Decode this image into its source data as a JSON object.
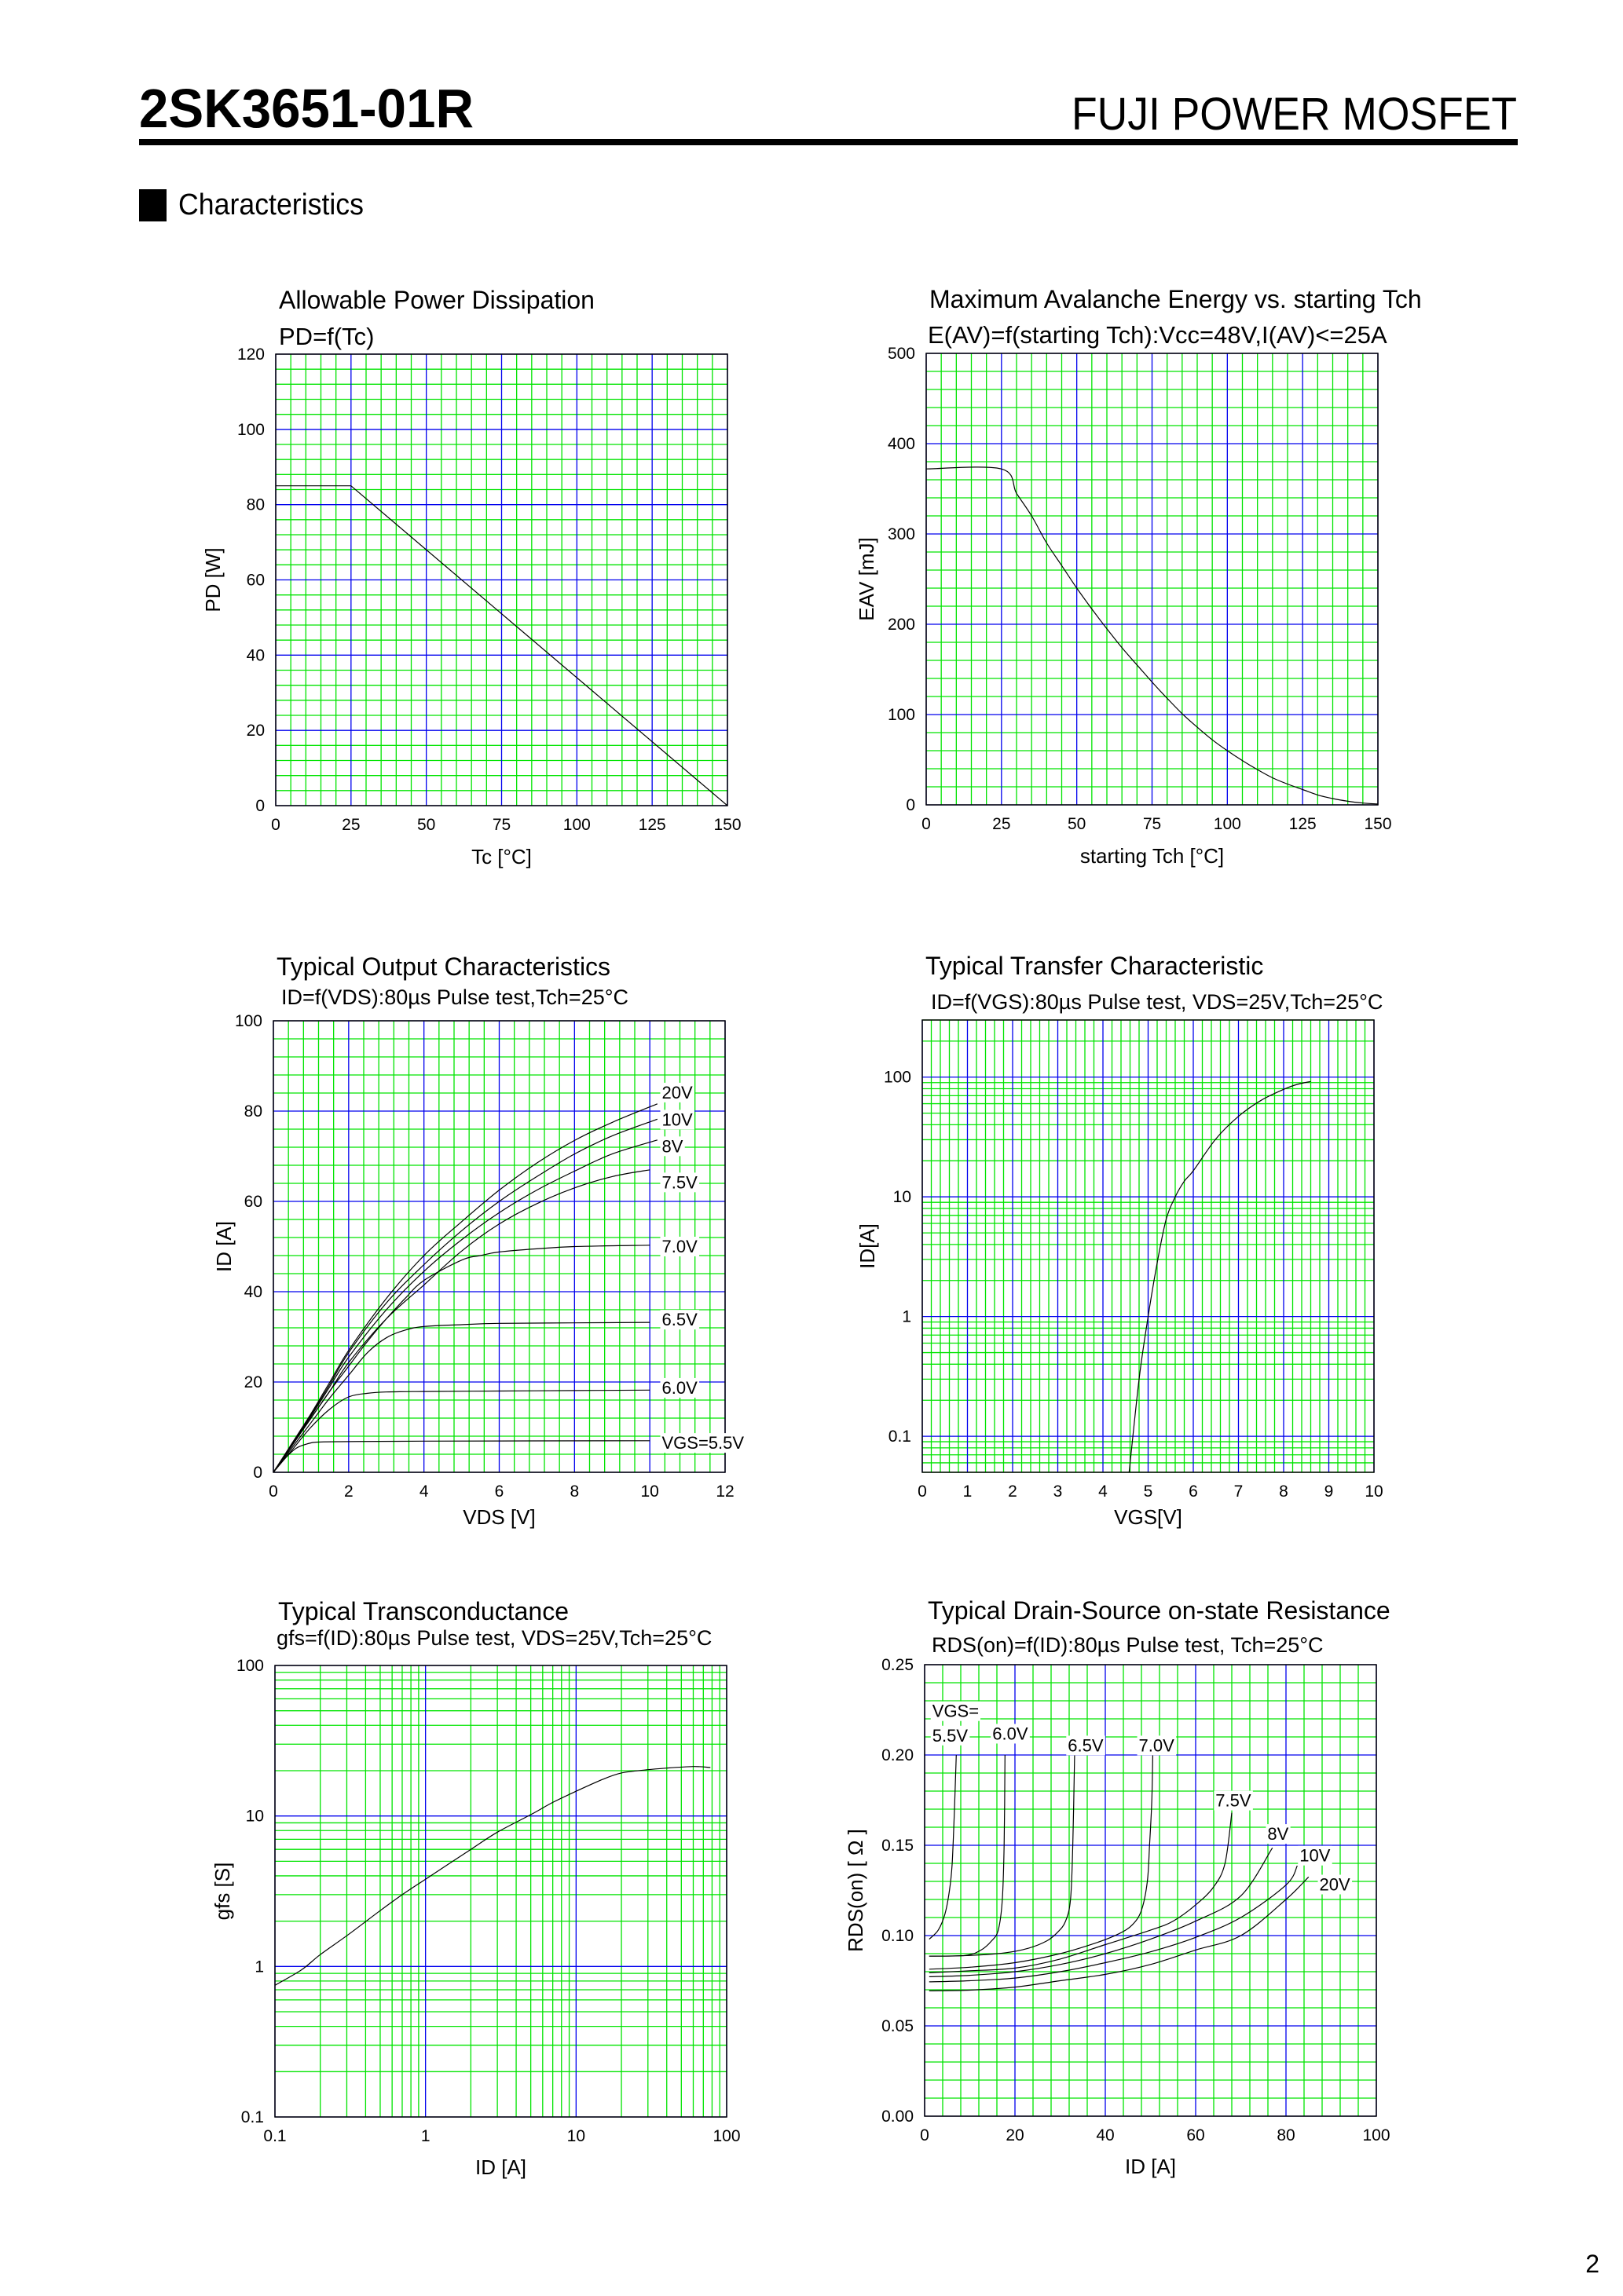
{
  "header": {
    "part_number": "2SK3651-01R",
    "product_line": "FUJI POWER MOSFET",
    "section": "Characteristics",
    "page_number": "2"
  },
  "colors": {
    "grid_minor": "#00e400",
    "grid_major": "#0000ee",
    "frame": "#000000",
    "curve": "#000000"
  },
  "chart_data": [
    {
      "type": "line",
      "title": "Allowable Power Dissipation",
      "subtitle": "PD=f(Tc)",
      "xlabel": "Tc [°C]",
      "ylabel": "PD [W]",
      "xscale": "linear",
      "yscale": "linear",
      "xlim": [
        0,
        150
      ],
      "ylim": [
        0,
        120
      ],
      "xticks": [
        "0",
        "25",
        "50",
        "75",
        "100",
        "125",
        "150"
      ],
      "yticks": [
        "0",
        "20",
        "40",
        "60",
        "80",
        "100",
        "120"
      ],
      "grid": true,
      "series": [
        {
          "x": [
            0,
            25,
            150
          ],
          "y": [
            85,
            85,
            0
          ]
        }
      ]
    },
    {
      "type": "line",
      "title": "Maximum Avalanche Energy vs. starting Tch",
      "subtitle": "E(AV)=f(starting Tch):Vcc=48V,I(AV)<=25A",
      "xlabel": "starting Tch [°C]",
      "ylabel": "EAV [mJ]",
      "xscale": "linear",
      "yscale": "linear",
      "xlim": [
        0,
        150
      ],
      "ylim": [
        0,
        500
      ],
      "xticks": [
        "0",
        "25",
        "50",
        "75",
        "100",
        "125",
        "150"
      ],
      "yticks": [
        "0",
        "100",
        "200",
        "300",
        "400",
        "500"
      ],
      "grid": true,
      "series": [
        {
          "x": [
            0,
            25,
            30,
            35,
            40,
            45,
            50,
            55,
            60,
            65,
            70,
            75,
            80,
            85,
            90,
            95,
            100,
            105,
            110,
            115,
            120,
            125,
            130,
            135,
            140,
            145,
            150
          ],
          "y": [
            372,
            372,
            345,
            320,
            290,
            265,
            240,
            217,
            195,
            174,
            155,
            136,
            118,
            101,
            86,
            72,
            60,
            49,
            39,
            30,
            23,
            17,
            11,
            7,
            4,
            2,
            1
          ]
        }
      ]
    },
    {
      "type": "line",
      "title": "Typical Output Characteristics",
      "subtitle": "ID=f(VDS):80µs Pulse test,Tch=25°C",
      "xlabel": "VDS [V]",
      "ylabel": "ID [A]",
      "xscale": "linear",
      "yscale": "linear",
      "xlim": [
        0,
        12
      ],
      "ylim": [
        0,
        100
      ],
      "xticks": [
        "0",
        "2",
        "4",
        "6",
        "8",
        "10",
        "12"
      ],
      "yticks": [
        "0",
        "20",
        "40",
        "60",
        "80",
        "100"
      ],
      "grid": true,
      "series": [
        {
          "name": "20V",
          "x": [
            0,
            0.5,
            1,
            1.5,
            2,
            3,
            4,
            5,
            6,
            7,
            8,
            9,
            10.2
          ],
          "y": [
            0,
            6.5,
            13,
            20,
            27,
            38.5,
            48,
            55.5,
            62.5,
            68.5,
            73.5,
            77.5,
            81.6
          ]
        },
        {
          "name": "10V",
          "x": [
            0,
            0.5,
            1,
            1.5,
            2,
            3,
            4,
            5,
            6,
            7,
            8,
            9,
            10.2
          ],
          "y": [
            0,
            6.3,
            12.7,
            19.5,
            26.5,
            37.5,
            46,
            53.5,
            60,
            65.5,
            70.5,
            74.5,
            78.2
          ]
        },
        {
          "name": "8V",
          "x": [
            0,
            0.5,
            1,
            1.5,
            2,
            3,
            4,
            5,
            6,
            7,
            8,
            9,
            10.2
          ],
          "y": [
            0,
            6.2,
            12.4,
            19,
            25.5,
            36,
            44.5,
            51.5,
            57.5,
            62.5,
            66.7,
            70.5,
            73.6
          ]
        },
        {
          "name": "7.5V",
          "x": [
            0,
            0.5,
            1,
            1.5,
            2,
            3,
            4,
            5,
            6,
            7,
            8,
            9,
            10
          ],
          "y": [
            0,
            6,
            12,
            18,
            24.3,
            34,
            41.5,
            49,
            55,
            59.5,
            63,
            65.5,
            67
          ]
        },
        {
          "name": "7.0V",
          "x": [
            0,
            0.5,
            1,
            1.5,
            2,
            2.5,
            3,
            3.5,
            4,
            5,
            5.5,
            6,
            7,
            8,
            10
          ],
          "y": [
            0,
            6,
            12,
            18,
            23.5,
            29,
            34,
            38.5,
            42.5,
            47,
            48,
            48.8,
            49.5,
            50,
            50.3
          ]
        },
        {
          "name": "6.5V",
          "x": [
            0,
            0.5,
            1,
            1.5,
            2,
            2.5,
            3,
            3.5,
            4,
            5,
            6,
            8,
            10
          ],
          "y": [
            0,
            5.5,
            11,
            16.5,
            21.5,
            26.5,
            29.8,
            31.5,
            32.3,
            32.7,
            33,
            33.1,
            33.2
          ]
        },
        {
          "name": "6.0V",
          "x": [
            0,
            0.5,
            1,
            1.5,
            2,
            2.5,
            3,
            4,
            6,
            8,
            10
          ],
          "y": [
            0,
            5,
            10,
            14,
            16.7,
            17.5,
            17.8,
            17.9,
            18,
            18.1,
            18.2
          ]
        },
        {
          "name": "VGS=5.5V",
          "x": [
            0,
            0.3,
            0.6,
            0.9,
            1.2,
            2,
            4,
            10
          ],
          "y": [
            0,
            3,
            5.3,
            6.3,
            6.7,
            6.8,
            6.9,
            7
          ]
        }
      ]
    },
    {
      "type": "line",
      "title": "Typical Transfer Characteristic",
      "subtitle": "ID=f(VGS):80µs Pulse test, VDS=25V,Tch=25°C",
      "xlabel": "VGS[V]",
      "ylabel": "ID[A]",
      "xscale": "linear",
      "yscale": "log",
      "xlim": [
        0,
        10
      ],
      "ylim": [
        0.05,
        300
      ],
      "xticks": [
        "0",
        "1",
        "2",
        "3",
        "4",
        "5",
        "6",
        "7",
        "8",
        "9",
        "10"
      ],
      "yticks": [
        "0.1",
        "1",
        "10",
        "100"
      ],
      "grid": true,
      "series": [
        {
          "x": [
            4.58,
            4.8,
            5,
            5.2,
            5.4,
            5.6,
            5.8,
            6,
            6.5,
            7,
            7.5,
            8,
            8.3,
            8.6
          ],
          "y": [
            0.05,
            0.3,
            1,
            2.8,
            6.5,
            10,
            13.5,
            16.5,
            30.5,
            47,
            64,
            79,
            87,
            92
          ]
        }
      ]
    },
    {
      "type": "line",
      "title": "Typical Transconductance",
      "subtitle": "gfs=f(ID):80µs Pulse test, VDS=25V,Tch=25°C",
      "xlabel": "ID [A]",
      "ylabel": "gfs [S]",
      "xscale": "log",
      "yscale": "log",
      "xlim": [
        0.1,
        100
      ],
      "ylim": [
        0.1,
        100
      ],
      "xticks": [
        "0.1",
        "1",
        "10",
        "100"
      ],
      "yticks": [
        "0.1",
        "1",
        "10",
        "100"
      ],
      "grid": true,
      "series": [
        {
          "x": [
            0.1,
            0.15,
            0.2,
            0.3,
            0.5,
            0.7,
            1,
            2,
            3,
            5,
            7,
            10,
            15,
            20,
            30,
            40,
            60,
            78
          ],
          "y": [
            0.75,
            0.95,
            1.2,
            1.6,
            2.35,
            3,
            3.8,
            6,
            7.8,
            10.2,
            12.3,
            14.6,
            17.5,
            19.3,
            20.3,
            20.8,
            21.3,
            21
          ]
        }
      ]
    },
    {
      "type": "line",
      "title": "Typical Drain-Source on-state Resistance",
      "subtitle": "RDS(on)=f(ID):80µs Pulse test, Tch=25°C",
      "xlabel": "ID [A]",
      "ylabel": "RDS(on) [ Ω ]",
      "xscale": "linear",
      "yscale": "linear",
      "xlim": [
        0,
        100
      ],
      "ylim": [
        0,
        0.25
      ],
      "xticks": [
        "0",
        "20",
        "40",
        "60",
        "80",
        "100"
      ],
      "yticks": [
        "0.00",
        "0.05",
        "0.10",
        "0.15",
        "0.20",
        "0.25"
      ],
      "grid": true,
      "legend_prefix": "VGS=",
      "series": [
        {
          "name": "5.5V",
          "x": [
            1,
            3,
            4.5,
            5.5,
            6.1,
            6.6,
            7
          ],
          "y": [
            0.098,
            0.103,
            0.112,
            0.125,
            0.14,
            0.17,
            0.2
          ]
        },
        {
          "name": "6.0V",
          "x": [
            1,
            9,
            12.5,
            14.8,
            16.3,
            17.2,
            17.6,
            17.8
          ],
          "y": [
            0.0886,
            0.089,
            0.092,
            0.097,
            0.103,
            0.12,
            0.15,
            0.2
          ]
        },
        {
          "name": "6.5V",
          "x": [
            1,
            10,
            18,
            23,
            27,
            29.5,
            31.2,
            32.3,
            32.8,
            33.2
          ],
          "y": [
            0.0886,
            0.089,
            0.0905,
            0.093,
            0.097,
            0.102,
            0.108,
            0.12,
            0.15,
            0.2
          ]
        },
        {
          "name": "7.0V",
          "x": [
            1,
            10,
            20,
            30,
            38,
            43,
            46,
            48,
            49.3,
            49.8,
            50.3,
            50.5
          ],
          "y": [
            0.0814,
            0.0825,
            0.085,
            0.09,
            0.096,
            0.101,
            0.106,
            0.114,
            0.13,
            0.15,
            0.175,
            0.2
          ]
        },
        {
          "name": "7.5V",
          "x": [
            1,
            10,
            20,
            30,
            40,
            50,
            55,
            60,
            64,
            66.5,
            68
          ],
          "y": [
            0.0794,
            0.0805,
            0.082,
            0.087,
            0.095,
            0.103,
            0.108,
            0.117,
            0.127,
            0.14,
            0.168
          ]
        },
        {
          "name": "8V",
          "x": [
            1,
            10,
            20,
            30,
            40,
            50,
            60,
            70,
            77
          ],
          "y": [
            0.0772,
            0.078,
            0.08,
            0.084,
            0.09,
            0.098,
            0.108,
            0.122,
            0.1486
          ]
        },
        {
          "name": "10V",
          "x": [
            1,
            10,
            20,
            30,
            40,
            50,
            60,
            70,
            80,
            82.5
          ],
          "y": [
            0.0744,
            0.075,
            0.0765,
            0.08,
            0.085,
            0.091,
            0.099,
            0.11,
            0.128,
            0.1387
          ]
        },
        {
          "name": "20V",
          "x": [
            1,
            10,
            20,
            30,
            40,
            50,
            60,
            70,
            80,
            85
          ],
          "y": [
            0.0694,
            0.0698,
            0.0715,
            0.075,
            0.0785,
            0.084,
            0.092,
            0.1,
            0.12,
            0.1325
          ]
        }
      ]
    }
  ]
}
